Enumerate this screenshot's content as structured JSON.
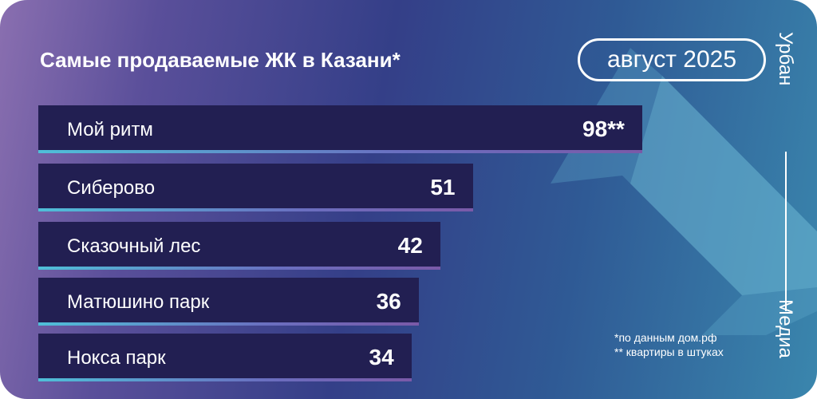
{
  "header": {
    "title": "Самые продаваемые ЖК в Казани*",
    "period": "август 2025"
  },
  "brand": {
    "top": "Урбан",
    "bottom": "Медиа"
  },
  "footnotes": [
    "*по данным дом.рф",
    "** квартиры в штуках"
  ],
  "colors": {
    "bar": "#221f52",
    "accent": "#4fbfd8"
  },
  "chart_data": {
    "type": "bar",
    "orientation": "horizontal",
    "title": "Самые продаваемые ЖК в Казани*",
    "categories": [
      "Мой ритм",
      "Сиберово",
      "Сказочный лес",
      "Матюшино парк",
      "Нокса парк"
    ],
    "values": [
      98,
      51,
      42,
      36,
      34
    ],
    "value_labels": [
      "98**",
      "51",
      "42",
      "36",
      "34"
    ],
    "grid": false
  }
}
